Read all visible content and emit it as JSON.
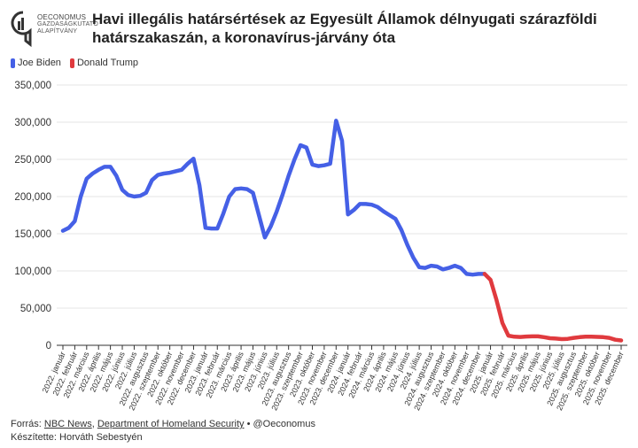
{
  "header": {
    "title": "Havi illegális határsértések az Egyesült Államok délnyugati szárazföldi határszakaszán, a koronavírus-járvány óta",
    "logo_line1": "OECONOMUS",
    "logo_line2": "GAZDASÁGKUTATÓ",
    "logo_line3": "ALAPÍTVÁNY"
  },
  "legend": [
    {
      "label": "Joe Biden",
      "color": "#4560e6"
    },
    {
      "label": "Donald Trump",
      "color": "#e03a3e"
    }
  ],
  "footer": {
    "source_prefix": "Forrás:",
    "source1": "NBC News",
    "sep1": ",",
    "source2": "Department of Homeland Security",
    "handle": "• @Oeconomus",
    "author": "Készítette: Horváth Sebestyén"
  },
  "chart_data": {
    "type": "line",
    "title": "Havi illegális határsértések az Egyesült Államok délnyugati szárazföldi határszakaszán, a koronavírus-járvány óta",
    "xlabel": "",
    "ylabel": "",
    "ylim": [
      0,
      350000
    ],
    "yticks": [
      0,
      50000,
      100000,
      150000,
      200000,
      250000,
      300000,
      350000
    ],
    "ytick_labels": [
      "0",
      "50,000",
      "100,000",
      "150,000",
      "200,000",
      "250,000",
      "300,000",
      "350,000"
    ],
    "grid": true,
    "categories": [
      "2022. január",
      "2022. február",
      "2022. március",
      "2022. április",
      "2022. május",
      "2022. június",
      "2022. július",
      "2022. augusztus",
      "2022. szeptember",
      "2022. október",
      "2022. november",
      "2022. december",
      "2023. január",
      "2023. február",
      "2023. március",
      "2023. április",
      "2023. május",
      "2023. június",
      "2023. július",
      "2023. augusztus",
      "2023. szeptember",
      "2023. október",
      "2023. november",
      "2023. december",
      "2024. január",
      "2024. február",
      "2024. március",
      "2024. április",
      "2024. május",
      "2024. június",
      "2024. július",
      "2024. augusztus",
      "2024. szeptember",
      "2024. október",
      "2024. november",
      "2024. december",
      "2025. január",
      "2025. február",
      "2025. március",
      "2025. április",
      "2025. május",
      "2025. június",
      "2025. július",
      "2025. augusztus",
      "2025. szeptember",
      "2025. október",
      "2025. november",
      "2025. december"
    ],
    "x": [
      0,
      0.5,
      1,
      1.5,
      2,
      2.5,
      3,
      3.5,
      4,
      4.5,
      5,
      5.5,
      6,
      6.5,
      7,
      7.5,
      8,
      8.5,
      9,
      9.5,
      10,
      10.5,
      11,
      11.5,
      12,
      12.5,
      13,
      13.5,
      14,
      14.5,
      15,
      15.5,
      16,
      16.5,
      17,
      17.5,
      18,
      18.5,
      19,
      19.5,
      20,
      20.5,
      21,
      21.5,
      22,
      22.5,
      23,
      23.5,
      24,
      24.5,
      25,
      25.5,
      26,
      26.5,
      27,
      27.5,
      28,
      28.5,
      29,
      29.5,
      30,
      30.5,
      31,
      31.5,
      32,
      32.5,
      33,
      33.5,
      34,
      34.5,
      35,
      35.5,
      36,
      36.5,
      37,
      37.5,
      38,
      38.5,
      39,
      39.5,
      40,
      40.5,
      41,
      41.5,
      42,
      42.5,
      43,
      43.5,
      44,
      44.5,
      45,
      45.5,
      46,
      46.5,
      47
    ],
    "series": [
      {
        "name": "Joe Biden",
        "color": "#4560e6",
        "x": [
          0,
          0.5,
          1,
          1.5,
          2,
          2.5,
          3,
          3.5,
          4,
          4.5,
          5,
          5.5,
          6,
          6.5,
          7,
          7.5,
          8,
          8.5,
          9,
          9.5,
          10,
          10.5,
          11,
          11.5,
          12,
          12.5,
          13,
          13.5,
          14,
          14.5,
          15,
          15.5,
          16,
          16.5,
          17,
          17.5,
          18,
          18.5,
          19,
          19.5,
          20,
          20.5,
          21,
          21.5,
          22,
          22.5,
          23,
          23.5,
          24,
          24.5,
          25,
          25.5,
          26,
          26.5,
          27,
          27.5,
          28,
          28.5,
          29,
          29.5,
          30,
          30.5,
          31,
          31.5,
          32,
          32.5,
          33,
          33.5,
          34,
          34.5,
          35,
          35.5
        ],
        "values": [
          154000,
          158000,
          167000,
          200000,
          224000,
          231000,
          236000,
          240000,
          240000,
          228000,
          209000,
          202000,
          200000,
          201000,
          205000,
          222000,
          229000,
          231000,
          232000,
          234000,
          236000,
          244000,
          251000,
          215000,
          158000,
          157000,
          157000,
          177000,
          200000,
          210000,
          211000,
          210000,
          205000,
          175000,
          145000,
          160000,
          180000,
          203000,
          228000,
          250000,
          269000,
          266000,
          243000,
          241000,
          242000,
          244000,
          302000,
          275000,
          176000,
          182000,
          190000,
          190000,
          189000,
          186000,
          180000,
          175000,
          170000,
          155000,
          135000,
          118000,
          105000,
          104000,
          107000,
          106000,
          102000,
          104000,
          107000,
          104000,
          96000,
          95000,
          96000,
          96000
        ]
      },
      {
        "name": "Donald Trump",
        "color": "#e03a3e",
        "x": [
          35.5,
          36,
          36.5,
          37,
          37.5,
          38,
          38.5,
          39,
          39.5,
          40,
          40.5,
          41,
          41.5,
          42,
          42.5,
          43,
          43.5,
          44,
          44.5,
          45,
          45.5,
          46,
          46.5,
          47
        ],
        "values": [
          96000,
          88000,
          61000,
          30000,
          13000,
          11500,
          11200,
          11800,
          12000,
          12000,
          11000,
          9500,
          9000,
          8300,
          8700,
          10000,
          11000,
          11500,
          11500,
          11300,
          11000,
          10000,
          7500,
          6500
        ]
      }
    ]
  }
}
